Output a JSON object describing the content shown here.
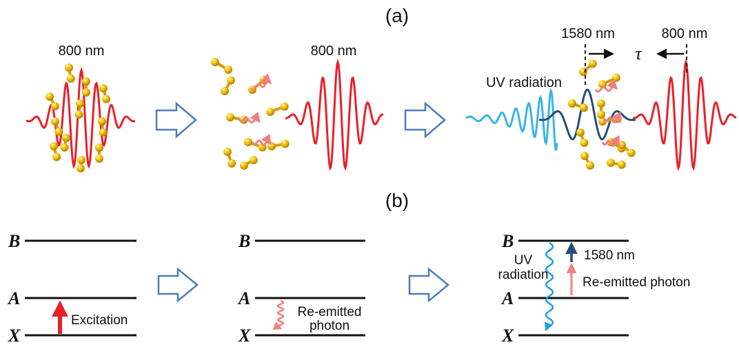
{
  "panels": {
    "a": "(a)",
    "b": "(b)"
  },
  "panel_a": {
    "step1": {
      "pulse_label": "800 nm"
    },
    "step2": {
      "pulse_label": "800 nm"
    },
    "step3": {
      "probe_label": "1580 nm",
      "pump_label": "800 nm",
      "delay_symbol": "τ",
      "uv_label": "UV radiation"
    }
  },
  "panel_b": {
    "levels": {
      "b": "B",
      "a": "A",
      "x": "X"
    },
    "step1": {
      "excitation_label": "Excitation"
    },
    "step2": {
      "reemitted_line1": "Re-emitted",
      "reemitted_line2": "photon"
    },
    "step3": {
      "uv_line1": "UV",
      "uv_line2": "radiation",
      "probe_label": "1580 nm",
      "reemitted_label": "Re-emitted photon"
    }
  },
  "colors": {
    "pulse_red": "#e8202a",
    "uv_blue": "#3ab4e6",
    "probe_navy": "#1f4e79",
    "reemit_pink": "#f08080",
    "molecule_gold": "#f2b705",
    "arrow_outline": "#4a7ebb"
  }
}
